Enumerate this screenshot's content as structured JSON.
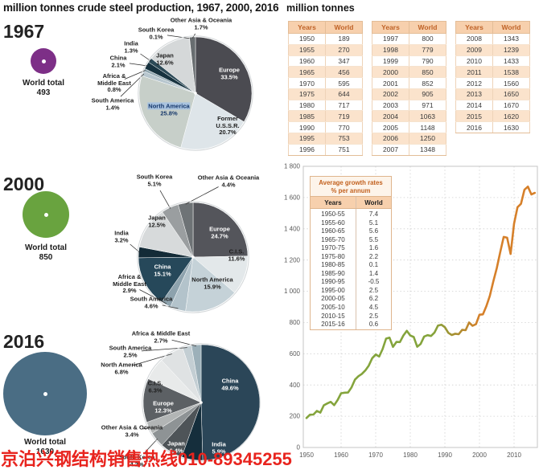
{
  "header": {
    "title": "million tonnes crude steel production, 1967, 2000, 2016",
    "right_title": "million tonnes"
  },
  "watermark": {
    "text": "京泊兴钢结构销售热线010-89345255",
    "color": "#e8241e"
  },
  "colors": {
    "line_green": "#84a43c",
    "line_orange": "#d6802a",
    "table_header_peach": "#f7d0ad",
    "table_row_peach": "#fbe3cc",
    "table_text_orange": "#bf6227",
    "watermark_red": "#e8241e",
    "highlight_blue": "#a9c3df"
  },
  "sections": [
    {
      "year": "1967",
      "world_total_label": "World total",
      "world_total": "493",
      "circle_color": "#7d2f87"
    },
    {
      "year": "2000",
      "world_total_label": "World total",
      "world_total": "850",
      "circle_color": "#69a33f"
    },
    {
      "year": "2016",
      "world_total_label": "World total",
      "world_total": "1630",
      "circle_color": "#4a6d84"
    }
  ],
  "chart_data": [
    {
      "type": "pie",
      "id": "pie-1967",
      "title": "1967",
      "world_total": 493,
      "slices": [
        {
          "name": "Europe",
          "value": 33.5,
          "pct": "33.5%",
          "color": "#4b4b51",
          "label": {
            "x": 42,
            "y": -24,
            "inside": true,
            "light": true,
            "lines": [
              "Europe",
              "33.5%"
            ]
          }
        },
        {
          "name": "Former U.S.S.R.",
          "value": 20.7,
          "pct": "20.7%",
          "color": "#dee5e9",
          "label": {
            "x": 40,
            "y": 41,
            "inside": true,
            "light": false,
            "lines": [
              "Former",
              "U.S.S.R.",
              "20.7%"
            ]
          }
        },
        {
          "name": "North America",
          "value": 25.8,
          "pct": "25.8%",
          "color": "#c7cfc9",
          "label": {
            "x": -33,
            "y": 21,
            "inside": true,
            "light": false,
            "highlight": true,
            "lines": [
              "North America",
              "25.8%"
            ]
          }
        },
        {
          "name": "South America",
          "value": 1.4,
          "pct": "1.4%",
          "color": "#b7c6ce",
          "label": {
            "x": -103,
            "y": 14,
            "inside": false,
            "light": false,
            "lines": [
              "South America",
              "1.4%"
            ]
          }
        },
        {
          "name": "Africa & Middle East",
          "value": 0.8,
          "pct": "0.8%",
          "color": "#93a9b3",
          "label": {
            "x": -101,
            "y": -12,
            "inside": false,
            "light": false,
            "lines": [
              "Africa &",
              "Middle East",
              "0.8%"
            ]
          }
        },
        {
          "name": "China",
          "value": 2.1,
          "pct": "2.1%",
          "color": "#16323f",
          "label": {
            "x": -96,
            "y": -39,
            "inside": false,
            "light": false,
            "lines": [
              "China",
              "2.1%"
            ]
          }
        },
        {
          "name": "India",
          "value": 1.3,
          "pct": "1.3%",
          "color": "#2c4a57",
          "label": {
            "x": -80,
            "y": -57,
            "inside": false,
            "light": false,
            "lines": [
              "India",
              "1.3%"
            ]
          }
        },
        {
          "name": "Japan",
          "value": 12.6,
          "pct": "12.6%",
          "color": "#d5d8d9",
          "label": {
            "x": -38,
            "y": -42,
            "inside": true,
            "light": false,
            "lines": [
              "Japan",
              "12.6%"
            ]
          }
        },
        {
          "name": "South Korea",
          "value": 0.1,
          "pct": "0.1%",
          "color": "#8a9091",
          "label": {
            "x": -49,
            "y": -74,
            "inside": false,
            "light": false,
            "lines": [
              "South Korea",
              "0.1%"
            ]
          }
        },
        {
          "name": "Other Asia & Oceania",
          "value": 1.7,
          "pct": "1.7%",
          "color": "#686d70",
          "label": {
            "x": 7,
            "y": -86,
            "inside": false,
            "light": false,
            "lines": [
              "Other Asia & Oceania",
              "1.7%"
            ]
          }
        }
      ]
    },
    {
      "type": "pie",
      "id": "pie-2000",
      "title": "2000",
      "world_total": 850,
      "slices": [
        {
          "name": "Europe",
          "value": 24.7,
          "pct": "24.7%",
          "color": "#54555b",
          "label": {
            "x": 33,
            "y": -30,
            "inside": true,
            "light": true,
            "lines": [
              "Europe",
              "24.7%"
            ]
          }
        },
        {
          "name": "C.I.S.",
          "value": 11.6,
          "pct": "11.6%",
          "color": "#e3e8ea",
          "label": {
            "x": 54,
            "y": -2,
            "inside": true,
            "light": false,
            "lines": [
              "C.I.S.",
              "11.6%"
            ]
          }
        },
        {
          "name": "North America",
          "value": 15.9,
          "pct": "15.9%",
          "color": "#c5d2d8",
          "label": {
            "x": 24,
            "y": 33,
            "inside": true,
            "light": false,
            "lines": [
              "North America",
              "15.9%"
            ]
          }
        },
        {
          "name": "South America",
          "value": 4.6,
          "pct": "4.6%",
          "color": "#b3c3cb",
          "label": {
            "x": -52,
            "y": 57,
            "inside": false,
            "light": false,
            "lines": [
              "South America",
              "4.6%"
            ]
          }
        },
        {
          "name": "Africa & Middle East",
          "value": 2.9,
          "pct": "2.9%",
          "color": "#8da2ad",
          "label": {
            "x": -79,
            "y": 34,
            "inside": false,
            "light": false,
            "lines": [
              "Africa &",
              "Middle East",
              "2.9%"
            ]
          }
        },
        {
          "name": "China",
          "value": 15.1,
          "pct": "15.1%",
          "color": "#26485a",
          "label": {
            "x": -38,
            "y": 17,
            "inside": true,
            "light": true,
            "lines": [
              "China",
              "15.1%"
            ]
          }
        },
        {
          "name": "India",
          "value": 3.2,
          "pct": "3.2%",
          "color": "#132b37",
          "label": {
            "x": -89,
            "y": -25,
            "inside": false,
            "light": false,
            "lines": [
              "India",
              "3.2%"
            ]
          }
        },
        {
          "name": "Japan",
          "value": 12.5,
          "pct": "12.5%",
          "color": "#d7dadb",
          "label": {
            "x": -45,
            "y": -44,
            "inside": true,
            "light": false,
            "lines": [
              "Japan",
              "12.5%"
            ]
          }
        },
        {
          "name": "South Korea",
          "value": 5.1,
          "pct": "5.1%",
          "color": "#9a9ea0",
          "label": {
            "x": -48,
            "y": -95,
            "inside": false,
            "light": false,
            "lines": [
              "South Korea",
              "5.1%"
            ]
          }
        },
        {
          "name": "Other Asia & Oceania",
          "value": 4.4,
          "pct": "4.4%",
          "color": "#6e7376",
          "label": {
            "x": 44,
            "y": -94,
            "inside": false,
            "light": false,
            "lines": [
              "Other Asia & Oceania",
              "4.4%"
            ]
          }
        }
      ]
    },
    {
      "type": "pie",
      "id": "pie-2016",
      "title": "2016",
      "world_total": 1630,
      "slices": [
        {
          "name": "China",
          "value": 49.6,
          "pct": "49.6%",
          "color": "#2b4658",
          "label": {
            "x": 36,
            "y": -22,
            "inside": true,
            "light": true,
            "lines": [
              "China",
              "49.6%"
            ]
          }
        },
        {
          "name": "India",
          "value": 5.9,
          "pct": "5.9%",
          "color": "#152e3c",
          "label": {
            "x": 22,
            "y": 57,
            "inside": true,
            "light": true,
            "lines": [
              "India",
              "5.9%"
            ]
          }
        },
        {
          "name": "Japan",
          "value": 6.4,
          "pct": "6.4%",
          "color": "#4e5458",
          "label": {
            "x": -31,
            "y": 56,
            "inside": true,
            "light": true,
            "lines": [
              "Japan",
              "6.4%"
            ]
          }
        },
        {
          "name": "South Korea",
          "value": 4.2,
          "pct": "4.2%",
          "color": "#8e9395",
          "label": {
            "x": -80,
            "y": 73,
            "inside": false,
            "light": false,
            "lines": [
              "South Korea",
              "4.2%"
            ]
          }
        },
        {
          "name": "Other Asia & Oceania",
          "value": 3.4,
          "pct": "3.4%",
          "color": "#b2b5b5",
          "label": {
            "x": -86,
            "y": 36,
            "inside": false,
            "light": false,
            "lines": [
              "Other Asia & Oceania",
              "3.4%"
            ]
          }
        },
        {
          "name": "Europe",
          "value": 12.3,
          "pct": "12.3%",
          "color": "#5c6064",
          "label": {
            "x": -47,
            "y": 6,
            "inside": true,
            "light": true,
            "lines": [
              "Europe",
              "12.3%"
            ]
          }
        },
        {
          "name": "C.I.S.",
          "value": 6.3,
          "pct": "6.3%",
          "color": "#e8eaea",
          "label": {
            "x": -57,
            "y": -19,
            "inside": true,
            "light": false,
            "lines": [
              "C.I.S.",
              "6.3%"
            ]
          }
        },
        {
          "name": "North America",
          "value": 6.8,
          "pct": "6.8%",
          "color": "#dfe2e3",
          "label": {
            "x": -99,
            "y": -42,
            "inside": false,
            "light": false,
            "lines": [
              "North America",
              "6.8%"
            ]
          }
        },
        {
          "name": "South America",
          "value": 2.5,
          "pct": "2.5%",
          "color": "#c3ced3",
          "label": {
            "x": -88,
            "y": -63,
            "inside": false,
            "light": false,
            "lines": [
              "South America",
              "2.5%"
            ]
          }
        },
        {
          "name": "Africa & Middle East",
          "value": 2.7,
          "pct": "2.7%",
          "color": "#9cb0b9",
          "label": {
            "x": -50,
            "y": -81,
            "inside": false,
            "light": false,
            "lines": [
              "Africa & Middle East",
              "2.7%"
            ]
          }
        }
      ]
    },
    {
      "type": "table",
      "id": "year-table-1",
      "headers": [
        "Years",
        "World"
      ],
      "rows": [
        [
          "1950",
          "189"
        ],
        [
          "1955",
          "270"
        ],
        [
          "1960",
          "347"
        ],
        [
          "1965",
          "456"
        ],
        [
          "1970",
          "595"
        ],
        [
          "1975",
          "644"
        ],
        [
          "1980",
          "717"
        ],
        [
          "1985",
          "719"
        ],
        [
          "1990",
          "770"
        ],
        [
          "1995",
          "753"
        ],
        [
          "1996",
          "751"
        ]
      ]
    },
    {
      "type": "table",
      "id": "year-table-2",
      "headers": [
        "Years",
        "World"
      ],
      "rows": [
        [
          "1997",
          "800"
        ],
        [
          "1998",
          "779"
        ],
        [
          "1999",
          "790"
        ],
        [
          "2000",
          "850"
        ],
        [
          "2001",
          "852"
        ],
        [
          "2002",
          "905"
        ],
        [
          "2003",
          "971"
        ],
        [
          "2004",
          "1063"
        ],
        [
          "2005",
          "1148"
        ],
        [
          "2006",
          "1250"
        ],
        [
          "2007",
          "1348"
        ]
      ]
    },
    {
      "type": "table",
      "id": "year-table-3",
      "headers": [
        "Years",
        "World"
      ],
      "rows": [
        [
          "2008",
          "1343"
        ],
        [
          "2009",
          "1239"
        ],
        [
          "2010",
          "1433"
        ],
        [
          "2011",
          "1538"
        ],
        [
          "2012",
          "1560"
        ],
        [
          "2013",
          "1650"
        ],
        [
          "2014",
          "1670"
        ],
        [
          "2015",
          "1620"
        ],
        [
          "2016",
          "1630"
        ]
      ]
    },
    {
      "type": "table",
      "id": "growth-table",
      "title_lines": [
        "Average growth rates",
        "% per annum"
      ],
      "headers": [
        "Years",
        "World"
      ],
      "rows": [
        [
          "1950-55",
          "7.4"
        ],
        [
          "1955-60",
          "5.1"
        ],
        [
          "1960-65",
          "5.6"
        ],
        [
          "1965-70",
          "5.5"
        ],
        [
          "1970-75",
          "1.6"
        ],
        [
          "1975-80",
          "2.2"
        ],
        [
          "1980-85",
          "0.1"
        ],
        [
          "1985-90",
          "1.4"
        ],
        [
          "1990-95",
          "-0.5"
        ],
        [
          "1995-00",
          "2.5"
        ],
        [
          "2000-05",
          "6.2"
        ],
        [
          "2005-10",
          "4.5"
        ],
        [
          "2010-15",
          "2.5"
        ],
        [
          "2015-16",
          "0.6"
        ]
      ]
    },
    {
      "type": "line",
      "id": "world-line",
      "title": "",
      "xlabel": "",
      "ylabel": "million tonnes",
      "x": [
        1950,
        1951,
        1952,
        1953,
        1954,
        1955,
        1956,
        1957,
        1958,
        1959,
        1960,
        1961,
        1962,
        1963,
        1964,
        1965,
        1966,
        1967,
        1968,
        1969,
        1970,
        1971,
        1972,
        1973,
        1974,
        1975,
        1976,
        1977,
        1978,
        1979,
        1980,
        1981,
        1982,
        1983,
        1984,
        1985,
        1986,
        1987,
        1988,
        1989,
        1990,
        1991,
        1992,
        1993,
        1994,
        1995,
        1996,
        1997,
        1998,
        1999,
        2000,
        2001,
        2002,
        2003,
        2004,
        2005,
        2006,
        2007,
        2008,
        2009,
        2010,
        2011,
        2012,
        2013,
        2014,
        2015,
        2016
      ],
      "y": [
        189,
        210,
        211,
        234,
        223,
        270,
        282,
        292,
        271,
        304,
        347,
        351,
        352,
        384,
        434,
        456,
        471,
        493,
        524,
        572,
        595,
        582,
        630,
        697,
        703,
        644,
        676,
        675,
        717,
        747,
        717,
        707,
        645,
        663,
        710,
        719,
        714,
        736,
        780,
        786,
        770,
        734,
        720,
        728,
        725,
        753,
        751,
        800,
        779,
        790,
        850,
        852,
        905,
        971,
        1063,
        1148,
        1250,
        1348,
        1343,
        1239,
        1433,
        1538,
        1560,
        1650,
        1670,
        1620,
        1630
      ],
      "ylim": [
        0,
        1800
      ],
      "ytick_values": [
        0,
        200,
        400,
        600,
        800,
        1000,
        1200,
        1400,
        1600,
        1800
      ],
      "ytick_labels": [
        "0",
        "200",
        "400",
        "600",
        "800",
        "1 000",
        "1 200",
        "1 400",
        "1 600",
        "1 800"
      ],
      "xticks": [
        1950,
        1960,
        1970,
        1980,
        1990,
        2000,
        2010
      ],
      "grid": true,
      "line_color_start": "#84a43c",
      "line_color_end": "#d6802a"
    }
  ]
}
